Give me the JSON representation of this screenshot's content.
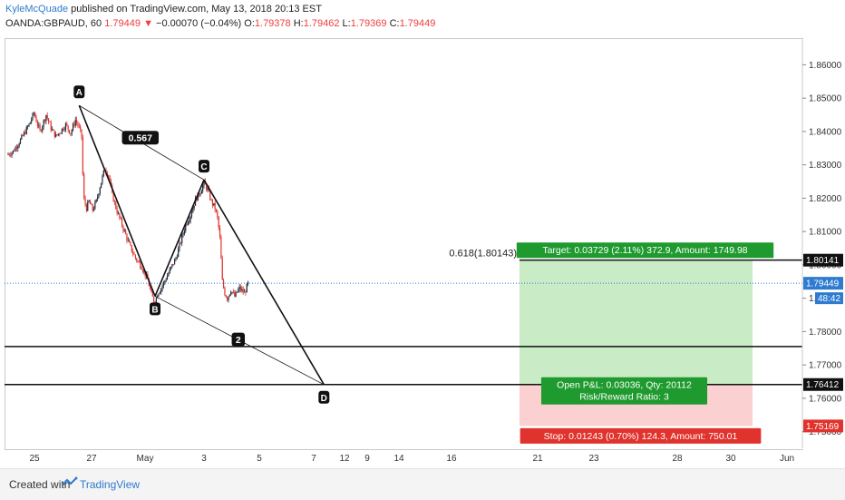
{
  "header": {
    "author": "KyleMcQuade",
    "published": " published on TradingView.com, May 13, 2018 20:13 EST",
    "symbol": "OANDA:GBPAUD, 60",
    "last": "1.79449",
    "change_arrow": "▼",
    "change": "−0.00070 (−0.04%)",
    "o_label": "O:",
    "o": "1.79378",
    "h_label": "H:",
    "h": "1.79462",
    "l_label": "L:",
    "l": "1.79369",
    "c_label": "C:",
    "c": "1.79449"
  },
  "footer": {
    "created": "Created with",
    "brand": "TradingView"
  },
  "colors": {
    "up": "#1f2a38",
    "down": "#e0332d",
    "profit_zone": "#c9ebc5",
    "loss_zone": "#fbd0d0",
    "target_box": "#1e9a2e",
    "stop_box": "#e0332d",
    "price_line": "#2e7bcf"
  },
  "chart_data": {
    "type": "candlestick",
    "symbol": "OANDA:GBPAUD",
    "interval": "60",
    "x_tick_labels": [
      "25",
      "27",
      "May",
      "3",
      "5",
      "7",
      "9",
      "12",
      "14",
      "16",
      "21",
      "23",
      "28",
      "30",
      "Jun"
    ],
    "y_tick_labels": [
      "1.86000",
      "1.85000",
      "1.84000",
      "1.83000",
      "1.82000",
      "1.81000",
      "1.80000",
      "1.79000",
      "1.78000",
      "1.77000",
      "1.76000",
      "1.75000"
    ],
    "ylim": [
      1.745,
      1.868
    ],
    "price_path": [
      [
        0,
        1.833
      ],
      [
        5,
        1.834
      ],
      [
        12,
        1.838
      ],
      [
        18,
        1.842
      ],
      [
        22,
        1.8455
      ],
      [
        27,
        1.84
      ],
      [
        32,
        1.845
      ],
      [
        36,
        1.841
      ],
      [
        40,
        1.8385
      ],
      [
        44,
        1.8402
      ],
      [
        48,
        1.842
      ],
      [
        52,
        1.8395
      ],
      [
        56,
        1.8435
      ],
      [
        59,
        1.841
      ],
      [
        61,
        1.8385
      ],
      [
        62,
        1.827
      ],
      [
        63,
        1.8195
      ],
      [
        65,
        1.817
      ],
      [
        67,
        1.819
      ],
      [
        70,
        1.8165
      ],
      [
        73,
        1.819
      ],
      [
        76,
        1.8235
      ],
      [
        80,
        1.829
      ],
      [
        83,
        1.827
      ],
      [
        86,
        1.821
      ],
      [
        90,
        1.816
      ],
      [
        95,
        1.811
      ],
      [
        100,
        1.806
      ],
      [
        105,
        1.802
      ],
      [
        110,
        1.7995
      ],
      [
        115,
        1.7955
      ],
      [
        118,
        1.791
      ],
      [
        121,
        1.7885
      ],
      [
        123,
        1.7915
      ],
      [
        126,
        1.793
      ],
      [
        130,
        1.796
      ],
      [
        134,
        1.799
      ],
      [
        138,
        1.802
      ],
      [
        142,
        1.807
      ],
      [
        146,
        1.812
      ],
      [
        150,
        1.815
      ],
      [
        154,
        1.8195
      ],
      [
        158,
        1.822
      ],
      [
        161,
        1.8245
      ],
      [
        164,
        1.8225
      ],
      [
        167,
        1.819
      ],
      [
        170,
        1.817
      ],
      [
        172,
        1.814
      ],
      [
        174,
        1.808
      ],
      [
        176,
        1.795
      ],
      [
        178,
        1.7915
      ],
      [
        180,
        1.79
      ],
      [
        183,
        1.7925
      ],
      [
        186,
        1.7905
      ],
      [
        190,
        1.793
      ],
      [
        194,
        1.7915
      ],
      [
        197,
        1.7944
      ]
    ],
    "harmonic_pattern": {
      "points": [
        {
          "label": "A",
          "bar": 58,
          "price": 1.8478
        },
        {
          "label": "B",
          "bar": 120,
          "price": 1.7906
        },
        {
          "label": "C",
          "bar": 160,
          "price": 1.8255
        },
        {
          "label": "D",
          "bar": 258,
          "price": 1.7641
        }
      ],
      "ratios": [
        {
          "label": "0.567",
          "bar": 108,
          "price": 1.838
        },
        {
          "label": "2",
          "bar": 188,
          "price": 1.7775
        }
      ]
    },
    "horizontal_levels": [
      1.7755,
      1.7641
    ],
    "fib_label": "0.618(1.80143)",
    "fib_level": 1.80143,
    "position": {
      "entry": 1.76412,
      "target": 1.80141,
      "stop": 1.75169,
      "target_text": "Target: 0.03729 (2.11%) 372.9, Amount: 1749.98",
      "open_pl_text": "Open P&L: 0.03036, Qty: 20112",
      "rr_text": "Risk/Reward Ratio: 3",
      "stop_text": "Stop: 0.01243 (0.70%) 124.3, Amount: 750.01"
    },
    "price_tags": [
      {
        "price": 1.80141,
        "text": "1.80141",
        "style": "dark"
      },
      {
        "price": 1.79449,
        "text": "1.79449",
        "style": "blue"
      },
      {
        "price": 1.76412,
        "text": "1.76412",
        "style": "dark"
      },
      {
        "price": 1.75169,
        "text": "1.75169",
        "style": "red"
      }
    ],
    "countdown": "48:42",
    "last_price": 1.79449
  }
}
